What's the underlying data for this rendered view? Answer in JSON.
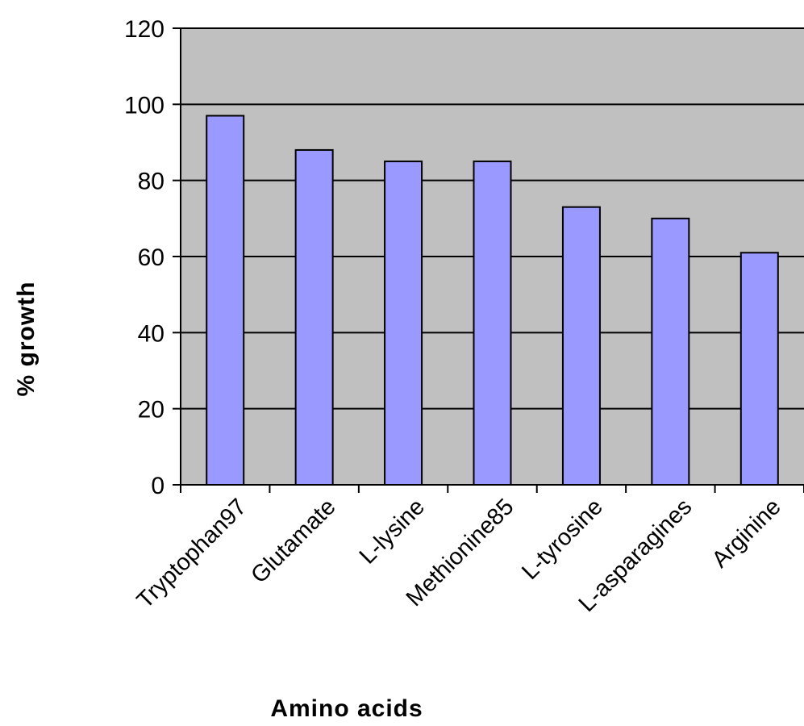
{
  "chart_data": {
    "type": "bar",
    "title": "",
    "xlabel": "Amino acids",
    "ylabel": "% growth",
    "categories": [
      "Tryptophan97",
      "Glutamate",
      "L-lysine",
      "Methionine85",
      "L-tyrosine",
      "L-asparagines",
      "Arginine"
    ],
    "values": [
      97,
      88,
      85,
      85,
      73,
      70,
      61
    ],
    "ylim": [
      0,
      120
    ],
    "yticks": [
      "0",
      "20",
      "40",
      "60",
      "80",
      "100",
      "120"
    ],
    "grid": true,
    "legend": "none",
    "colors": {
      "bar": "#9999ff",
      "bar_stroke": "#000000",
      "plot_bg": "#c0c0c0",
      "grid": "#000000"
    }
  }
}
